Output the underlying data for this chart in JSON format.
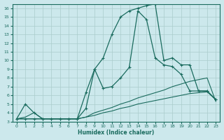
{
  "xlabel": "Humidex (Indice chaleur)",
  "bg_color": "#cce8ec",
  "line_color": "#1a6b5e",
  "grid_color": "#aacccc",
  "xlim": [
    -0.5,
    23.5
  ],
  "ylim": [
    3,
    16.5
  ],
  "xticks": [
    0,
    1,
    2,
    3,
    4,
    5,
    6,
    7,
    8,
    9,
    10,
    11,
    12,
    13,
    14,
    15,
    16,
    17,
    18,
    19,
    20,
    21,
    22,
    23
  ],
  "yticks": [
    3,
    4,
    5,
    6,
    7,
    8,
    9,
    10,
    11,
    12,
    13,
    14,
    15,
    16
  ],
  "curve_big_x": [
    0,
    1,
    2,
    3,
    4,
    5,
    6,
    7,
    8,
    9,
    10,
    11,
    12,
    13,
    14,
    15,
    16,
    17,
    18,
    19,
    20,
    21,
    22,
    23
  ],
  "curve_big_y": [
    3.3,
    3.3,
    3.3,
    3.3,
    3.3,
    3.3,
    3.3,
    3.3,
    4.5,
    9.0,
    10.3,
    13.0,
    15.0,
    15.7,
    16.0,
    16.3,
    16.5,
    10.0,
    10.3,
    9.5,
    9.5,
    6.5,
    6.5,
    5.5
  ],
  "curve_med_x": [
    0,
    1,
    2,
    3,
    4,
    5,
    6,
    7,
    8,
    9,
    10,
    11,
    12,
    13,
    14,
    15,
    16,
    17,
    18,
    19,
    20,
    21,
    22,
    23
  ],
  "curve_med_y": [
    3.3,
    5.0,
    4.0,
    3.3,
    3.3,
    3.3,
    3.3,
    3.3,
    6.3,
    9.0,
    6.8,
    7.0,
    8.0,
    9.2,
    15.7,
    14.7,
    10.3,
    9.5,
    9.3,
    8.4,
    6.5,
    6.5,
    6.5,
    5.5
  ],
  "curve_flat1_x": [
    0,
    1,
    2,
    3,
    4,
    5,
    6,
    7,
    8,
    9,
    10,
    11,
    12,
    13,
    14,
    15,
    16,
    17,
    18,
    19,
    20,
    21,
    22,
    23
  ],
  "curve_flat1_y": [
    3.3,
    3.5,
    4.0,
    3.3,
    3.3,
    3.3,
    3.3,
    3.3,
    3.5,
    4.0,
    4.3,
    4.6,
    5.0,
    5.3,
    5.7,
    6.0,
    6.3,
    6.6,
    7.0,
    7.3,
    7.6,
    7.8,
    8.0,
    5.3
  ],
  "curve_flat2_x": [
    0,
    1,
    2,
    3,
    4,
    5,
    6,
    7,
    8,
    9,
    10,
    11,
    12,
    13,
    14,
    15,
    16,
    17,
    18,
    19,
    20,
    21,
    22,
    23
  ],
  "curve_flat2_y": [
    3.3,
    3.3,
    3.3,
    3.3,
    3.3,
    3.3,
    3.3,
    3.3,
    3.5,
    3.7,
    4.0,
    4.2,
    4.5,
    4.7,
    5.0,
    5.2,
    5.4,
    5.6,
    5.8,
    6.0,
    6.2,
    6.3,
    6.4,
    5.5
  ]
}
